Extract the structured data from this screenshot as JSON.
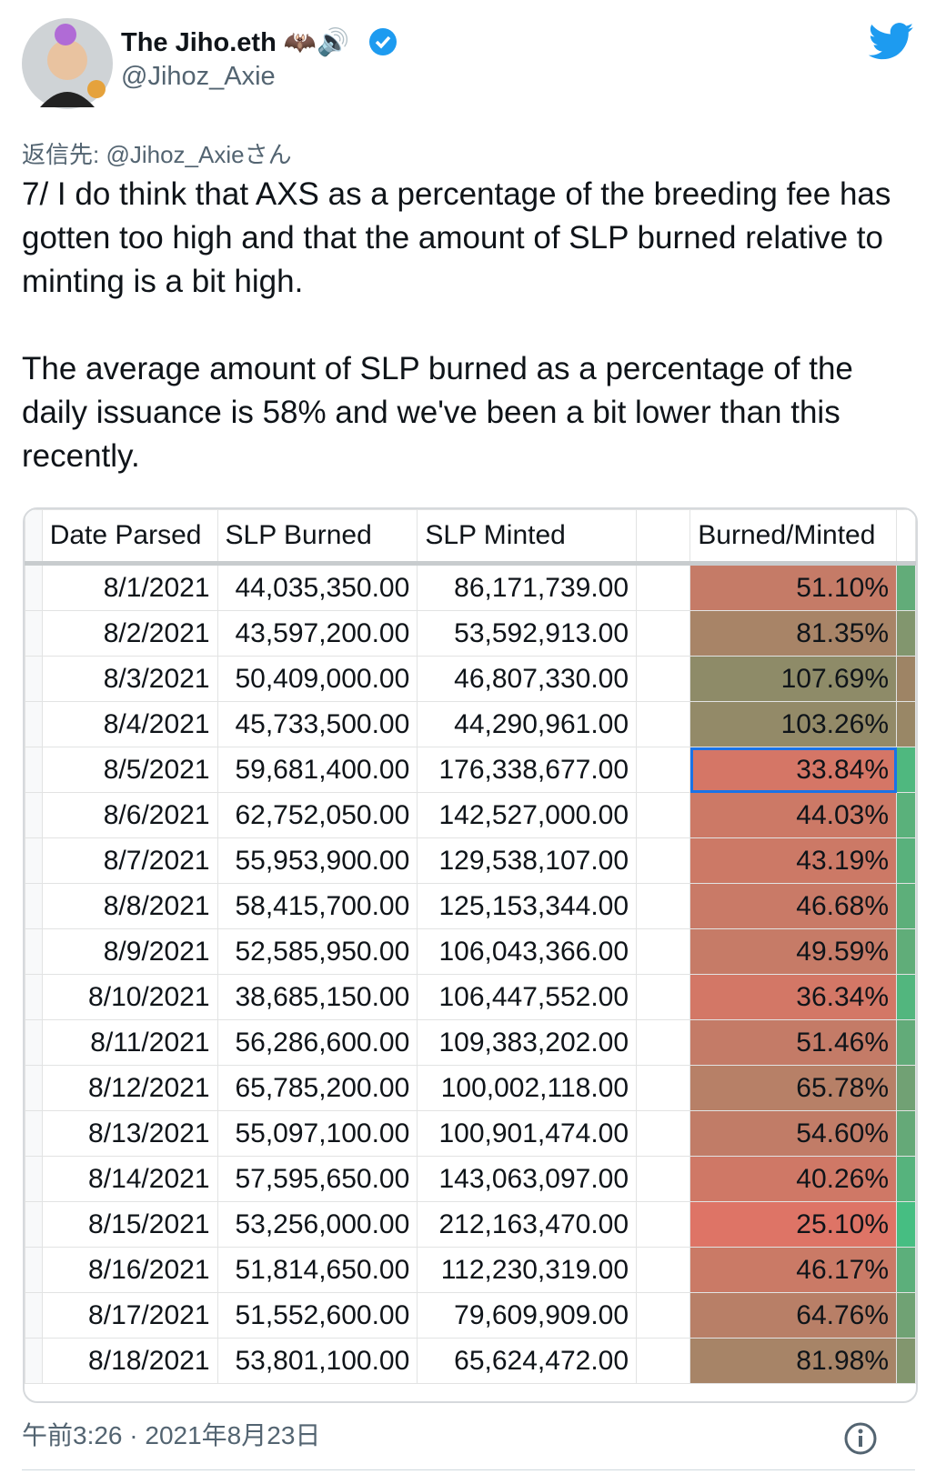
{
  "header": {
    "name": "The Jiho.eth 🦇🔊",
    "handle": "@Jihoz_Axie"
  },
  "reply_to": "返信先: @Jihoz_Axieさん",
  "text": [
    "7/ I do think that AXS as a percentage of the breeding fee has gotten too high and that the amount of SLP burned relative to minting is a bit high.",
    "The average amount of SLP burned as a percentage of the daily issuance is 58% and we've been a bit lower than this recently."
  ],
  "table": {
    "columns": [
      "Date Parsed",
      "SLP Burned",
      "SLP Minted",
      "Burned/Minted"
    ],
    "rows": [
      [
        "8/1/2021",
        "44,035,350.00",
        "86,171,739.00",
        "51.10%"
      ],
      [
        "8/2/2021",
        "43,597,200.00",
        "53,592,913.00",
        "81.35%"
      ],
      [
        "8/3/2021",
        "50,409,000.00",
        "46,807,330.00",
        "107.69%"
      ],
      [
        "8/4/2021",
        "45,733,500.00",
        "44,290,961.00",
        "103.26%"
      ],
      [
        "8/5/2021",
        "59,681,400.00",
        "176,338,677.00",
        "33.84%"
      ],
      [
        "8/6/2021",
        "62,752,050.00",
        "142,527,000.00",
        "44.03%"
      ],
      [
        "8/7/2021",
        "55,953,900.00",
        "129,538,107.00",
        "43.19%"
      ],
      [
        "8/8/2021",
        "58,415,700.00",
        "125,153,344.00",
        "46.68%"
      ],
      [
        "8/9/2021",
        "52,585,950.00",
        "106,043,366.00",
        "49.59%"
      ],
      [
        "8/10/2021",
        "38,685,150.00",
        "106,447,552.00",
        "36.34%"
      ],
      [
        "8/11/2021",
        "56,286,600.00",
        "109,383,202.00",
        "51.46%"
      ],
      [
        "8/12/2021",
        "65,785,200.00",
        "100,002,118.00",
        "65.78%"
      ],
      [
        "8/13/2021",
        "55,097,100.00",
        "100,901,474.00",
        "54.60%"
      ],
      [
        "8/14/2021",
        "57,595,650.00",
        "143,063,097.00",
        "40.26%"
      ],
      [
        "8/15/2021",
        "53,256,000.00",
        "212,163,470.00",
        "25.10%"
      ],
      [
        "8/16/2021",
        "51,814,650.00",
        "112,230,319.00",
        "46.17%"
      ],
      [
        "8/17/2021",
        "51,552,600.00",
        "79,609,909.00",
        "64.76%"
      ],
      [
        "8/18/2021",
        "53,801,100.00",
        "65,624,472.00",
        "81.98%"
      ]
    ]
  },
  "footer": {
    "time": "午前3:26 · 2021年8月23日"
  }
}
